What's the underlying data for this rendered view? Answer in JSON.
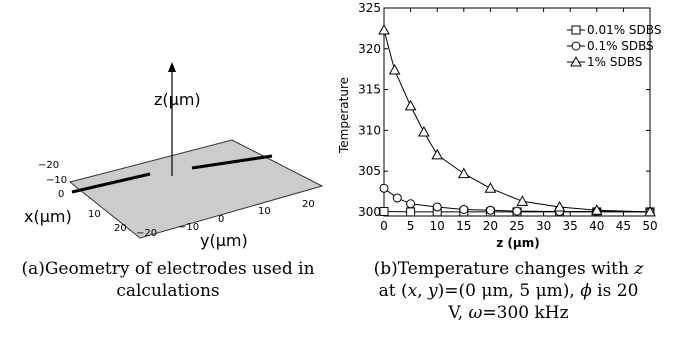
{
  "figure_a": {
    "z_axis_label": "z(μm)",
    "x_axis_label": "x(μm)",
    "y_axis_label": "y(μm)",
    "x_ticks": [
      "−20",
      "−10",
      "0",
      "10",
      "20"
    ],
    "y_ticks": [
      "−20",
      "−10",
      "0",
      "10",
      "20"
    ],
    "caption": "(a)Geometry of electrodes used in calculations"
  },
  "chart_data": {
    "type": "line",
    "title": "",
    "xlabel": "z (μm)",
    "ylabel": "Temperature",
    "xlim": [
      0,
      50
    ],
    "ylim": [
      299.5,
      325
    ],
    "x_ticks": [
      0,
      5,
      10,
      15,
      20,
      25,
      30,
      35,
      40,
      45,
      50
    ],
    "y_ticks": [
      300,
      305,
      310,
      315,
      320,
      325
    ],
    "legend_position": "top-right",
    "series": [
      {
        "name": "0.01% SDBS",
        "marker": "square",
        "points": [
          [
            0,
            300.05
          ],
          [
            5,
            300.0
          ],
          [
            10,
            300.0
          ],
          [
            15,
            300.0
          ],
          [
            20,
            300.0
          ],
          [
            25,
            300.0
          ],
          [
            33,
            300.0
          ],
          [
            40,
            300.0
          ],
          [
            50,
            300.0
          ]
        ]
      },
      {
        "name": "0.1% SDBS",
        "marker": "circle",
        "points": [
          [
            0,
            302.9
          ],
          [
            2.5,
            301.7
          ],
          [
            5,
            301.0
          ],
          [
            10,
            300.6
          ],
          [
            15,
            300.3
          ],
          [
            20,
            300.2
          ],
          [
            25,
            300.1
          ],
          [
            33,
            300.05
          ],
          [
            40,
            300.05
          ],
          [
            50,
            300.0
          ]
        ]
      },
      {
        "name": "1% SDBS",
        "marker": "triangle",
        "points": [
          [
            0,
            322.3
          ],
          [
            2,
            317.4
          ],
          [
            5,
            313.0
          ],
          [
            7.5,
            309.8
          ],
          [
            10,
            307.0
          ],
          [
            15,
            304.7
          ],
          [
            20,
            302.9
          ],
          [
            26,
            301.3
          ],
          [
            33,
            300.6
          ],
          [
            40,
            300.2
          ],
          [
            50,
            300.0
          ]
        ]
      }
    ],
    "caption": {
      "line1_pre": "(b)Temperature changes with ",
      "line1_var": "z",
      "line2_pre": "at (",
      "line2_x": "x",
      "line2_mid": ", ",
      "line2_y": "y",
      "line2_val": ")=(0 μm, 5 μm), ",
      "line2_phi": "ϕ",
      "line2_post": " is 20",
      "line3_pre": "V, ",
      "line3_omega": "ω",
      "line3_post": "=300 kHz"
    }
  }
}
